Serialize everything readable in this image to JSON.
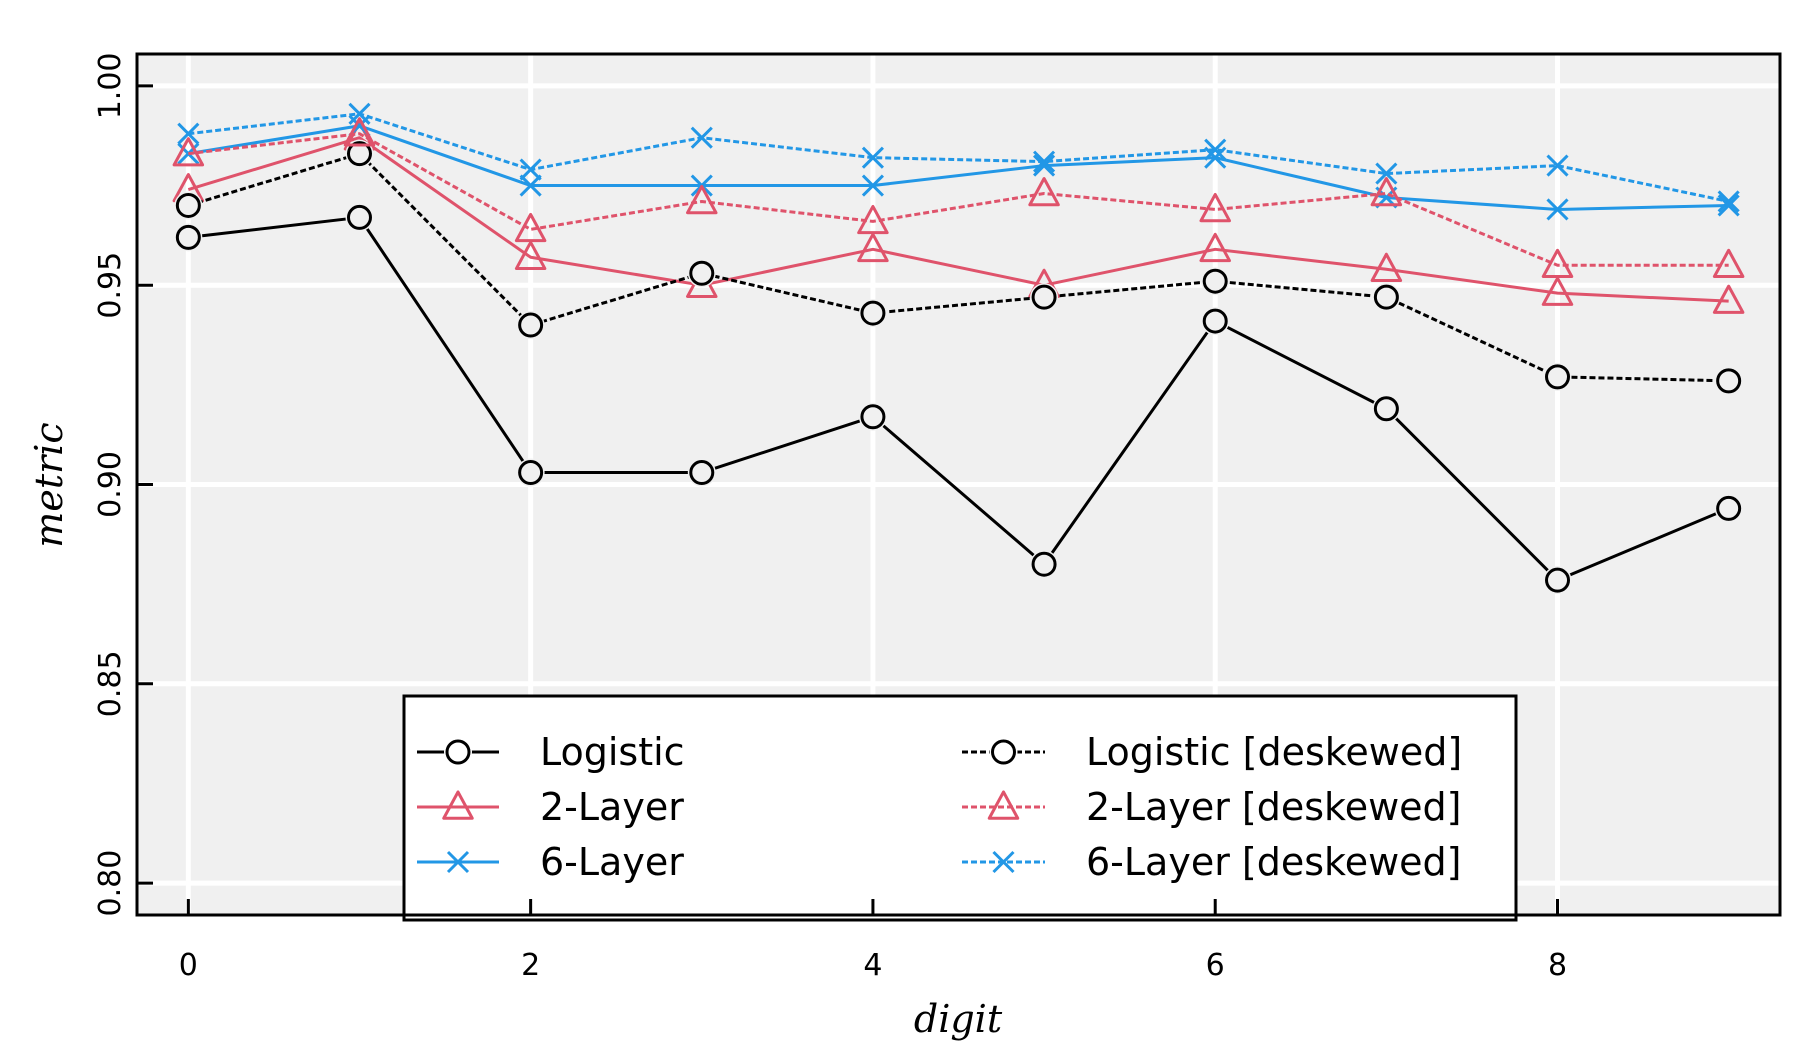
{
  "chart_data": {
    "type": "line",
    "xlabel": "digit",
    "ylabel": "metric",
    "xlim": [
      -0.3,
      9.3
    ],
    "ylim": [
      0.792,
      1.008
    ],
    "x_ticks": [
      0,
      2,
      4,
      6,
      8
    ],
    "y_ticks": [
      0.8,
      0.85,
      0.9,
      0.95,
      1.0
    ],
    "y_tick_labels": [
      "0.80",
      "0.85",
      "0.90",
      "0.95",
      "1.00"
    ],
    "grid": true,
    "legend_position": "bottom-center",
    "x": [
      0,
      1,
      2,
      3,
      4,
      5,
      6,
      7,
      8,
      9
    ],
    "series": [
      {
        "name": "Logistic",
        "color": "#000000",
        "marker": "circle",
        "dashed": false,
        "values": [
          0.962,
          0.967,
          0.903,
          0.903,
          0.917,
          0.88,
          0.941,
          0.919,
          0.876,
          0.894
        ]
      },
      {
        "name": "2-Layer",
        "color": "#DF536B",
        "marker": "triangle",
        "dashed": false,
        "values": [
          0.974,
          0.987,
          0.957,
          0.95,
          0.959,
          0.95,
          0.959,
          0.954,
          0.948,
          0.946
        ]
      },
      {
        "name": "6-Layer",
        "color": "#2297E6",
        "marker": "cross",
        "dashed": false,
        "values": [
          0.983,
          0.99,
          0.975,
          0.975,
          0.975,
          0.98,
          0.982,
          0.972,
          0.969,
          0.97
        ]
      },
      {
        "name": "Logistic [deskewed]",
        "color": "#000000",
        "marker": "circle",
        "dashed": true,
        "values": [
          0.97,
          0.983,
          0.94,
          0.953,
          0.943,
          0.947,
          0.951,
          0.947,
          0.927,
          0.926
        ]
      },
      {
        "name": "2-Layer [deskewed]",
        "color": "#DF536B",
        "marker": "triangle",
        "dashed": true,
        "values": [
          0.983,
          0.988,
          0.964,
          0.971,
          0.966,
          0.973,
          0.969,
          0.973,
          0.955,
          0.955
        ]
      },
      {
        "name": "6-Layer [deskewed]",
        "color": "#2297E6",
        "marker": "cross",
        "dashed": true,
        "values": [
          0.988,
          0.993,
          0.979,
          0.987,
          0.982,
          0.981,
          0.984,
          0.978,
          0.98,
          0.971
        ]
      }
    ]
  }
}
